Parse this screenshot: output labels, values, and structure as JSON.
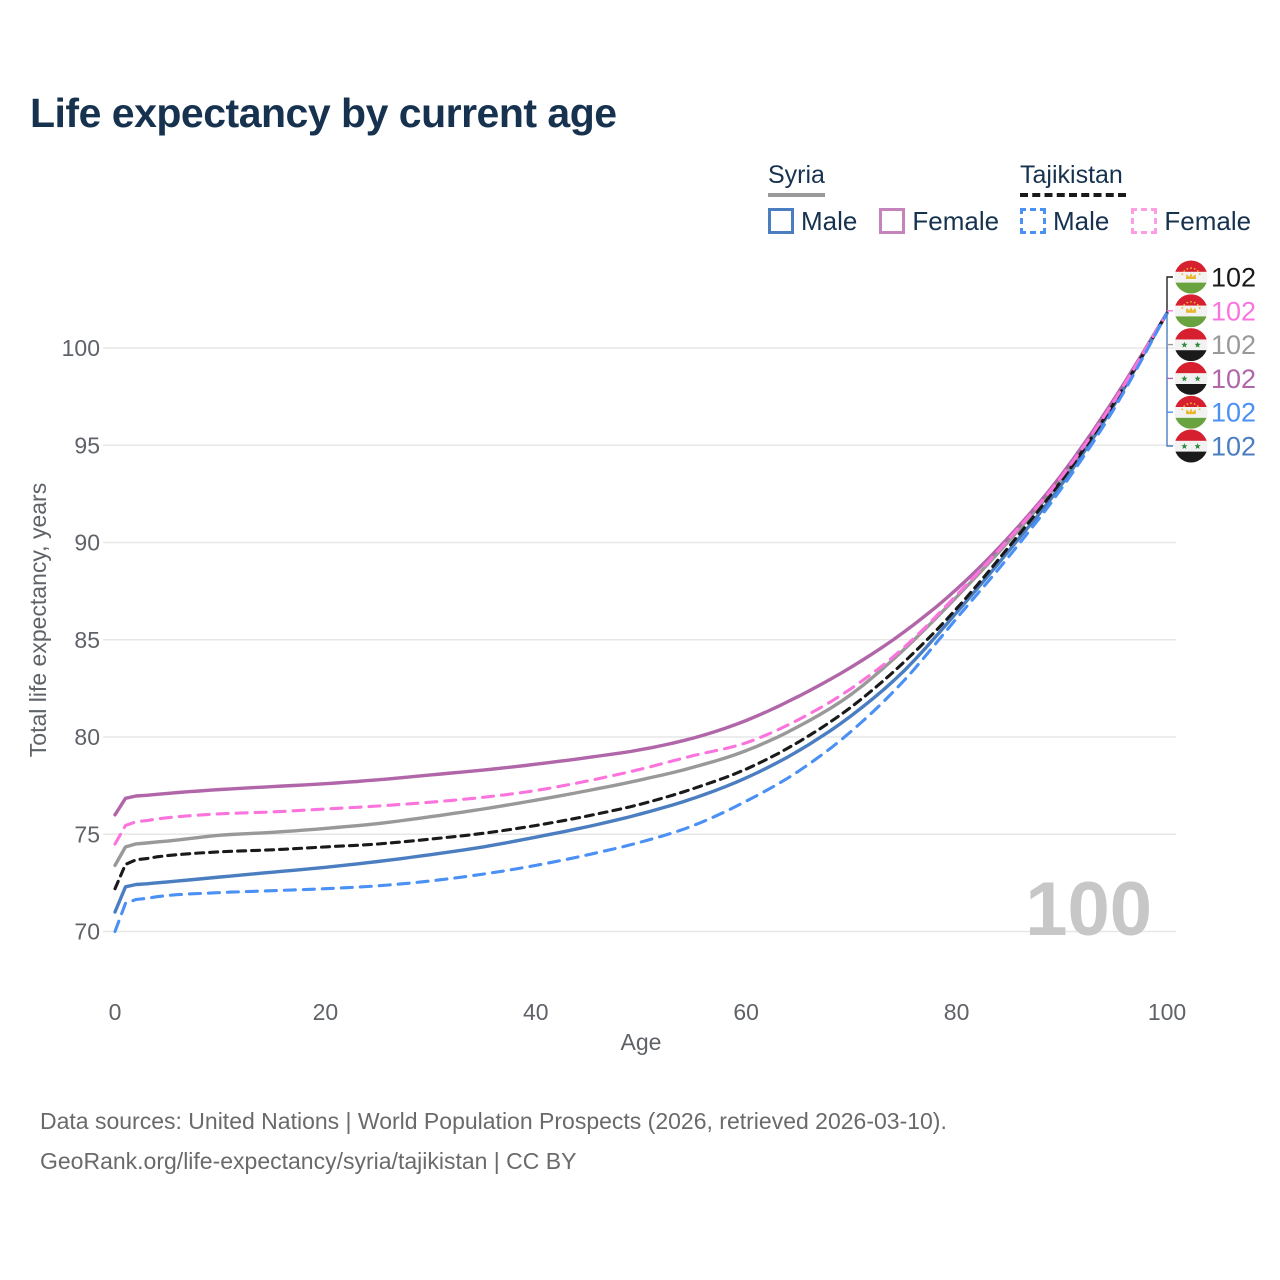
{
  "header": {
    "title": "Life expectancy by current age"
  },
  "legend": {
    "groups": [
      {
        "country": "Syria",
        "line_style": "solid",
        "underline_color": "#999999",
        "items": [
          {
            "label": "Male",
            "color": "#4a7ec0",
            "style": "solid"
          },
          {
            "label": "Female",
            "color": "#c583bb",
            "style": "solid"
          }
        ]
      },
      {
        "country": "Tajikistan",
        "line_style": "dashed",
        "underline_color": "#1a1a1a",
        "items": [
          {
            "label": "Male",
            "color": "#4a90f5",
            "style": "dashed"
          },
          {
            "label": "Female",
            "color": "#ff9ce6",
            "style": "dashed"
          }
        ]
      }
    ]
  },
  "watermark": "100",
  "footer": {
    "line1": "Data sources: United Nations | World Population Prospects (2026, retrieved 2026-03-10).",
    "line2": "GeoRank.org/life-expectancy/syria/tajikistan | CC BY"
  },
  "chart_data": {
    "type": "line",
    "title": "Life expectancy by current age",
    "xlabel": "Age",
    "ylabel": "Total life expectancy, years",
    "x_ticks": [
      0,
      20,
      40,
      60,
      80,
      100
    ],
    "y_ticks": [
      70,
      75,
      80,
      85,
      90,
      95,
      100
    ],
    "xlim": [
      0,
      100
    ],
    "ylim": [
      70,
      100
    ],
    "grid": "horizontal",
    "ages": [
      0,
      1,
      3,
      5,
      10,
      15,
      20,
      25,
      30,
      35,
      40,
      45,
      50,
      55,
      60,
      65,
      70,
      75,
      80,
      85,
      90,
      95,
      100
    ],
    "series": [
      {
        "id": "syria-all",
        "country": "Syria",
        "sex": "All",
        "style": "solid",
        "color": "#999999",
        "end_label": "102",
        "label_rank": 2,
        "values": [
          73.4,
          74.35,
          74.55,
          74.65,
          74.95,
          75.1,
          75.3,
          75.55,
          75.9,
          76.3,
          76.75,
          77.25,
          77.8,
          78.45,
          79.3,
          80.55,
          82.2,
          84.5,
          87.2,
          90.1,
          93.3,
          97.25,
          101.8
        ]
      },
      {
        "id": "syria-female",
        "country": "Syria",
        "sex": "Female",
        "style": "solid",
        "color": "#b066a8",
        "end_label": "102",
        "label_rank": 3,
        "values": [
          76.0,
          76.85,
          77.0,
          77.1,
          77.3,
          77.45,
          77.6,
          77.8,
          78.05,
          78.3,
          78.6,
          78.95,
          79.35,
          79.95,
          80.85,
          82.1,
          83.6,
          85.4,
          87.6,
          90.3,
          93.5,
          97.4,
          101.8
        ]
      },
      {
        "id": "syria-male",
        "country": "Syria",
        "sex": "Male",
        "style": "solid",
        "color": "#4a7ec0",
        "end_label": "102",
        "label_rank": 5,
        "values": [
          71.0,
          72.3,
          72.45,
          72.55,
          72.8,
          73.05,
          73.3,
          73.6,
          73.95,
          74.35,
          74.85,
          75.4,
          76.05,
          76.85,
          77.9,
          79.3,
          81.1,
          83.4,
          86.4,
          89.6,
          93.0,
          97.1,
          101.8
        ]
      },
      {
        "id": "tajikistan-all",
        "country": "Tajikistan",
        "sex": "All",
        "style": "dashed",
        "color": "#1a1a1a",
        "end_label": "102",
        "label_rank": 0,
        "values": [
          72.2,
          73.45,
          73.75,
          73.9,
          74.1,
          74.2,
          74.35,
          74.5,
          74.75,
          75.05,
          75.45,
          75.95,
          76.55,
          77.35,
          78.35,
          79.75,
          81.55,
          83.85,
          86.6,
          89.8,
          93.2,
          97.2,
          101.8
        ]
      },
      {
        "id": "tajikistan-female",
        "country": "Tajikistan",
        "sex": "Female",
        "style": "dashed",
        "color": "#fb74dd",
        "end_label": "102",
        "label_rank": 1,
        "values": [
          74.5,
          75.45,
          75.7,
          75.85,
          76.05,
          76.15,
          76.3,
          76.45,
          76.65,
          76.9,
          77.25,
          77.75,
          78.35,
          79.05,
          79.7,
          80.9,
          82.5,
          84.6,
          87.3,
          90.2,
          93.4,
          97.3,
          101.8
        ]
      },
      {
        "id": "tajikistan-male",
        "country": "Tajikistan",
        "sex": "Male",
        "style": "dashed",
        "color": "#4a90f5",
        "end_label": "102",
        "label_rank": 4,
        "values": [
          70.0,
          71.45,
          71.7,
          71.85,
          72.0,
          72.1,
          72.2,
          72.35,
          72.6,
          72.95,
          73.4,
          73.95,
          74.6,
          75.45,
          76.7,
          78.25,
          80.3,
          82.9,
          86.1,
          89.3,
          92.8,
          96.9,
          101.8
        ]
      }
    ],
    "flags": {
      "Syria": {
        "bands": [
          "#d6202f",
          "#f2f2f2",
          "#1a1a1a"
        ],
        "star_color": "#2e8b3d"
      },
      "Tajikistan": {
        "bands": [
          "#d6202f",
          "#f2f2f2",
          "#69a33f"
        ],
        "accent": "#e8b82a"
      }
    }
  }
}
